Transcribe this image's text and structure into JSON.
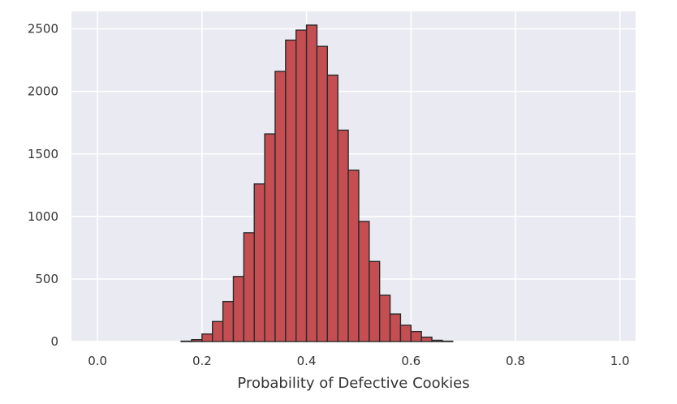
{
  "chart_data": {
    "type": "bar",
    "title": "",
    "xlabel": "Probability of Defective Cookies",
    "ylabel": "",
    "xlim": [
      -0.05,
      1.03
    ],
    "ylim": [
      0,
      2640
    ],
    "grid": true,
    "colors": {
      "bar_fill": "#c44e52",
      "bar_edge": "#2a2a2a",
      "plot_background": "#eaeaf2",
      "grid": "#ffffff"
    },
    "x_ticks": [
      {
        "value": 0.0,
        "label": "0.0"
      },
      {
        "value": 0.2,
        "label": "0.2"
      },
      {
        "value": 0.4,
        "label": "0.4"
      },
      {
        "value": 0.6,
        "label": "0.6"
      },
      {
        "value": 0.8,
        "label": "0.8"
      },
      {
        "value": 1.0,
        "label": "1.0"
      }
    ],
    "y_ticks": [
      {
        "value": 0,
        "label": "0"
      },
      {
        "value": 500,
        "label": "500"
      },
      {
        "value": 1000,
        "label": "1000"
      },
      {
        "value": 1500,
        "label": "1500"
      },
      {
        "value": 2000,
        "label": "2000"
      },
      {
        "value": 2500,
        "label": "2500"
      }
    ],
    "bins": [
      {
        "x0": 0.16,
        "x1": 0.18,
        "count": 3
      },
      {
        "x0": 0.18,
        "x1": 0.2,
        "count": 15
      },
      {
        "x0": 0.2,
        "x1": 0.22,
        "count": 60
      },
      {
        "x0": 0.22,
        "x1": 0.24,
        "count": 160
      },
      {
        "x0": 0.24,
        "x1": 0.26,
        "count": 320
      },
      {
        "x0": 0.26,
        "x1": 0.28,
        "count": 520
      },
      {
        "x0": 0.28,
        "x1": 0.3,
        "count": 870
      },
      {
        "x0": 0.3,
        "x1": 0.32,
        "count": 1260
      },
      {
        "x0": 0.32,
        "x1": 0.34,
        "count": 1660
      },
      {
        "x0": 0.34,
        "x1": 0.36,
        "count": 2160
      },
      {
        "x0": 0.36,
        "x1": 0.38,
        "count": 2410
      },
      {
        "x0": 0.38,
        "x1": 0.4,
        "count": 2490
      },
      {
        "x0": 0.4,
        "x1": 0.42,
        "count": 2530
      },
      {
        "x0": 0.42,
        "x1": 0.44,
        "count": 2360
      },
      {
        "x0": 0.44,
        "x1": 0.46,
        "count": 2130
      },
      {
        "x0": 0.46,
        "x1": 0.48,
        "count": 1690
      },
      {
        "x0": 0.48,
        "x1": 0.5,
        "count": 1370
      },
      {
        "x0": 0.5,
        "x1": 0.52,
        "count": 960
      },
      {
        "x0": 0.52,
        "x1": 0.54,
        "count": 640
      },
      {
        "x0": 0.54,
        "x1": 0.56,
        "count": 370
      },
      {
        "x0": 0.56,
        "x1": 0.58,
        "count": 220
      },
      {
        "x0": 0.58,
        "x1": 0.6,
        "count": 130
      },
      {
        "x0": 0.6,
        "x1": 0.62,
        "count": 80
      },
      {
        "x0": 0.62,
        "x1": 0.64,
        "count": 35
      },
      {
        "x0": 0.64,
        "x1": 0.66,
        "count": 10
      },
      {
        "x0": 0.66,
        "x1": 0.68,
        "count": 3
      }
    ]
  }
}
